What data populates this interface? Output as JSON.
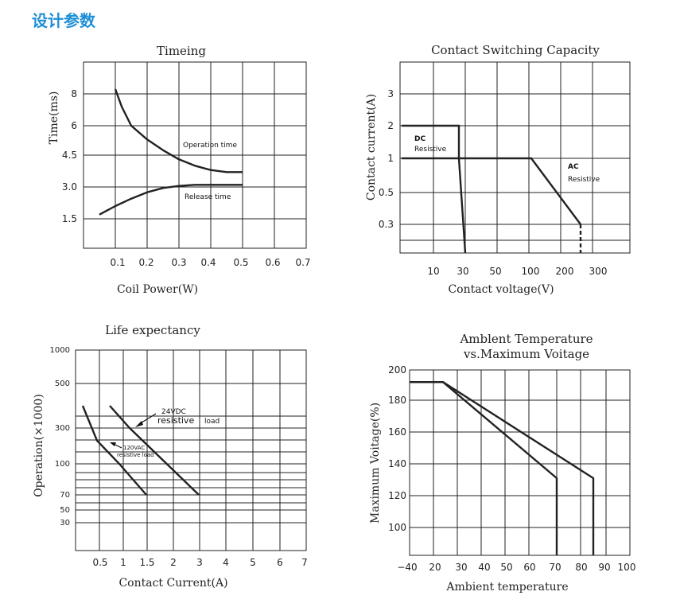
{
  "page": {
    "heading": "设计参数"
  },
  "chart_data": [
    {
      "type": "line",
      "title": "Timeing",
      "xlabel": "Coil Power(W)",
      "ylabel": "Time(ms)",
      "x_ticks": [
        "0.1",
        "0.2",
        "0.3",
        "0.4",
        "0.5",
        "0.6",
        "0.7"
      ],
      "y_ticks": [
        "8",
        "6",
        "4.5",
        "3.0",
        "1.5"
      ],
      "series": [
        {
          "name": "Operation time",
          "x": [
            0.1,
            0.12,
            0.15,
            0.2,
            0.25,
            0.3,
            0.35,
            0.4,
            0.45,
            0.5
          ],
          "y": [
            8.3,
            7.2,
            6.0,
            5.3,
            4.75,
            4.3,
            4.0,
            3.8,
            3.7,
            3.7
          ]
        },
        {
          "name": "Release time",
          "x": [
            0.05,
            0.1,
            0.15,
            0.2,
            0.25,
            0.3,
            0.35,
            0.4,
            0.45,
            0.5
          ],
          "y": [
            1.7,
            2.1,
            2.45,
            2.75,
            2.95,
            3.05,
            3.1,
            3.1,
            3.1,
            3.1
          ]
        }
      ]
    },
    {
      "type": "line",
      "title": "Contact Switching Capacity",
      "xlabel": "Contact voltage(V)",
      "ylabel": "Contact current(A)",
      "x_ticks": [
        "10",
        "30",
        "50",
        "100",
        "200",
        "300"
      ],
      "y_ticks": [
        "3",
        "2",
        "1",
        "0.5",
        "0.3"
      ],
      "series": [
        {
          "label_lines": [
            "DC",
            "Resistive"
          ],
          "x": [
            0,
            28,
            28,
            30
          ],
          "y": [
            2,
            2,
            1,
            0.15
          ]
        },
        {
          "label_lines": [
            "AC",
            "Resistive"
          ],
          "x": [
            0,
            110,
            250,
            250
          ],
          "y": [
            1,
            1,
            0.3,
            0.15
          ]
        }
      ]
    },
    {
      "type": "line",
      "title": "Life expectancy",
      "xlabel": "Contact Current(A)",
      "ylabel": "Operation(×1000)",
      "x_ticks": [
        "0.5",
        "1",
        "1.5",
        "2",
        "2.5",
        "3",
        "4",
        "5",
        "6",
        "7"
      ],
      "y_ticks": [
        "1000",
        "500",
        "300",
        "100",
        "70",
        "50",
        "30"
      ],
      "series": [
        {
          "label_lines": [
            "24VDC",
            "resistive",
            "load"
          ],
          "x": [
            0.7,
            1.0,
            3.0
          ],
          "y": [
            400,
            300,
            70
          ]
        },
        {
          "label_lines": [
            "120VAC",
            "resistive load"
          ],
          "x": [
            0.2,
            0.5,
            1.0,
            1.5
          ],
          "y": [
            400,
            230,
            100,
            70
          ]
        }
      ]
    },
    {
      "type": "line",
      "title_lines": [
        "Amblent Temperature",
        "vs.Maximum Voitage"
      ],
      "xlabel": "Ambient temperature",
      "ylabel": "Maximum Voitage(%)",
      "x_ticks": [
        "−40",
        "20",
        "30",
        "40",
        "50",
        "60",
        "70",
        "80",
        "90",
        "100"
      ],
      "y_ticks": [
        "200",
        "180",
        "160",
        "140",
        "120",
        "100"
      ],
      "series": [
        {
          "x": [
            -40,
            23,
            85,
            85
          ],
          "y": [
            192,
            192,
            131,
            80
          ]
        },
        {
          "x": [
            -40,
            23,
            70,
            70
          ],
          "y": [
            192,
            192,
            131,
            80
          ]
        }
      ]
    }
  ]
}
